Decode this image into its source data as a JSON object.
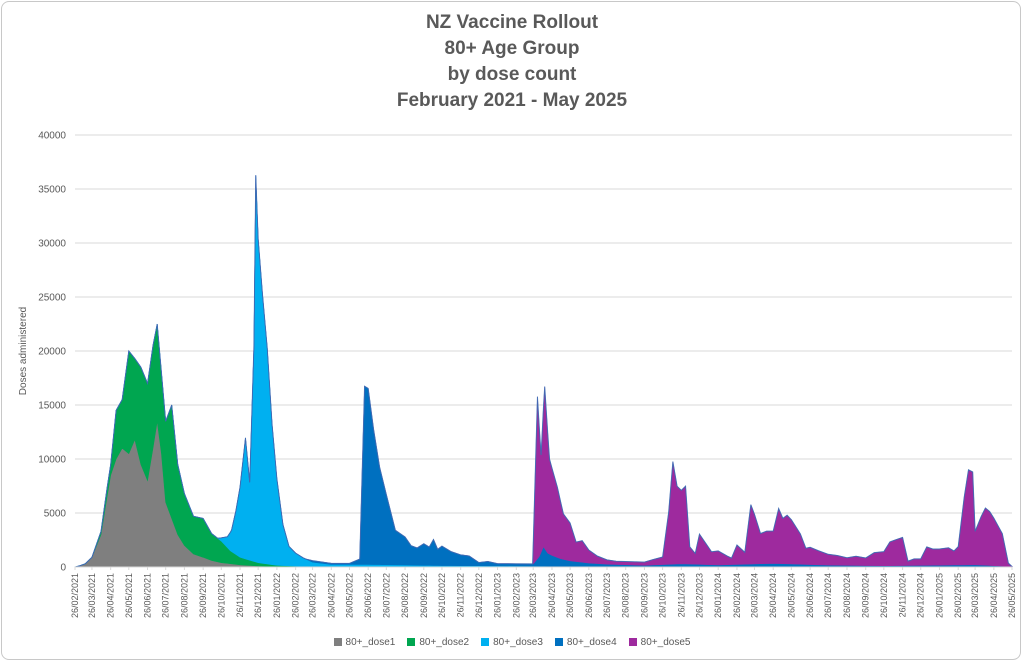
{
  "chart_data": {
    "type": "area",
    "title_lines": [
      "NZ Vaccine Rollout",
      "80+ Age Group",
      "by dose count",
      "February 2021 - May 2025"
    ],
    "xlabel": "",
    "ylabel": "Doses administered",
    "ylim": [
      0,
      40000
    ],
    "y_ticks": [
      0,
      5000,
      10000,
      15000,
      20000,
      25000,
      30000,
      35000,
      40000
    ],
    "x_tick_labels": [
      "26/02/2021",
      "26/03/2021",
      "26/04/2021",
      "26/05/2021",
      "26/06/2021",
      "26/07/2021",
      "26/08/2021",
      "26/09/2021",
      "26/10/2021",
      "26/11/2021",
      "26/12/2021",
      "26/01/2022",
      "26/02/2022",
      "26/03/2022",
      "26/04/2022",
      "26/05/2022",
      "26/06/2022",
      "26/07/2022",
      "26/08/2022",
      "26/09/2022",
      "26/10/2022",
      "26/11/2022",
      "26/12/2022",
      "26/01/2023",
      "26/02/2023",
      "26/03/2023",
      "26/04/2023",
      "26/05/2023",
      "26/06/2023",
      "26/07/2023",
      "26/08/2023",
      "26/09/2023",
      "26/10/2023",
      "26/11/2023",
      "26/12/2023",
      "26/01/2024",
      "26/02/2024",
      "26/03/2024",
      "26/04/2024",
      "26/05/2024",
      "26/06/2024",
      "26/07/2024",
      "26/08/2024",
      "26/09/2024",
      "26/10/2024",
      "26/11/2024",
      "26/12/2024",
      "26/01/2025",
      "26/02/2025",
      "26/03/2025",
      "26/04/2025",
      "26/05/2025"
    ],
    "grid": true,
    "stacked": true,
    "legend_position": "bottom",
    "series": [
      {
        "name": "80+_dose1",
        "color": "#7f7f7f",
        "points": [
          [
            "26/02/2021",
            0
          ],
          [
            "05/03/2021",
            100
          ],
          [
            "15/03/2021",
            300
          ],
          [
            "26/03/2021",
            900
          ],
          [
            "10/04/2021",
            3000
          ],
          [
            "20/04/2021",
            6500
          ],
          [
            "26/04/2021",
            8500
          ],
          [
            "05/05/2021",
            10000
          ],
          [
            "15/05/2021",
            11000
          ],
          [
            "26/05/2021",
            10500
          ],
          [
            "05/06/2021",
            11800
          ],
          [
            "15/06/2021",
            9500
          ],
          [
            "26/06/2021",
            8000
          ],
          [
            "05/07/2021",
            11000
          ],
          [
            "12/07/2021",
            13500
          ],
          [
            "19/07/2021",
            10500
          ],
          [
            "26/07/2021",
            6000
          ],
          [
            "05/08/2021",
            4500
          ],
          [
            "15/08/2021",
            3000
          ],
          [
            "26/08/2021",
            2000
          ],
          [
            "10/09/2021",
            1200
          ],
          [
            "26/09/2021",
            900
          ],
          [
            "10/10/2021",
            600
          ],
          [
            "26/10/2021",
            400
          ],
          [
            "26/11/2021",
            200
          ],
          [
            "26/12/2021",
            100
          ],
          [
            "26/01/2022",
            50
          ],
          [
            "26/03/2022",
            20
          ],
          [
            "26/05/2025",
            0
          ]
        ]
      },
      {
        "name": "80+_dose2",
        "color": "#00a650",
        "points": [
          [
            "26/02/2021",
            0
          ],
          [
            "26/03/2021",
            0
          ],
          [
            "10/04/2021",
            300
          ],
          [
            "20/04/2021",
            800
          ],
          [
            "26/04/2021",
            1000
          ],
          [
            "05/05/2021",
            4500
          ],
          [
            "15/05/2021",
            4500
          ],
          [
            "26/05/2021",
            9500
          ],
          [
            "05/06/2021",
            7500
          ],
          [
            "15/06/2021",
            9000
          ],
          [
            "26/06/2021",
            9000
          ],
          [
            "05/07/2021",
            9500
          ],
          [
            "12/07/2021",
            9000
          ],
          [
            "19/07/2021",
            7500
          ],
          [
            "26/07/2021",
            7500
          ],
          [
            "05/08/2021",
            10500
          ],
          [
            "15/08/2021",
            6500
          ],
          [
            "26/08/2021",
            4800
          ],
          [
            "10/09/2021",
            3500
          ],
          [
            "26/09/2021",
            3600
          ],
          [
            "10/10/2021",
            2500
          ],
          [
            "26/10/2021",
            2000
          ],
          [
            "10/11/2021",
            1200
          ],
          [
            "26/11/2021",
            700
          ],
          [
            "26/12/2021",
            300
          ],
          [
            "26/01/2022",
            100
          ],
          [
            "26/02/2022",
            50
          ],
          [
            "26/03/2022",
            20
          ],
          [
            "26/05/2025",
            0
          ]
        ]
      },
      {
        "name": "80+_dose3",
        "color": "#00b0f0",
        "points": [
          [
            "26/02/2021",
            0
          ],
          [
            "20/10/2021",
            0
          ],
          [
            "26/10/2021",
            300
          ],
          [
            "05/11/2021",
            1000
          ],
          [
            "12/11/2021",
            2000
          ],
          [
            "19/11/2021",
            4000
          ],
          [
            "26/11/2021",
            6500
          ],
          [
            "05/12/2021",
            11200
          ],
          [
            "12/12/2021",
            7200
          ],
          [
            "19/12/2021",
            20000
          ],
          [
            "22/12/2021",
            35800
          ],
          [
            "26/12/2021",
            30000
          ],
          [
            "02/01/2022",
            25000
          ],
          [
            "10/01/2022",
            20000
          ],
          [
            "18/01/2022",
            13000
          ],
          [
            "26/01/2022",
            8000
          ],
          [
            "05/02/2022",
            3800
          ],
          [
            "15/02/2022",
            1800
          ],
          [
            "26/02/2022",
            1200
          ],
          [
            "10/03/2022",
            800
          ],
          [
            "26/03/2022",
            400
          ],
          [
            "26/04/2022",
            200
          ],
          [
            "26/05/2022",
            200
          ],
          [
            "26/06/2022",
            200
          ],
          [
            "26/08/2022",
            150
          ],
          [
            "26/10/2022",
            100
          ],
          [
            "26/01/2023",
            80
          ],
          [
            "26/04/2023",
            50
          ],
          [
            "26/10/2023",
            30
          ],
          [
            "26/05/2025",
            0
          ]
        ]
      },
      {
        "name": "80+_dose4",
        "color": "#0070c0",
        "points": [
          [
            "26/02/2021",
            0
          ],
          [
            "15/03/2022",
            0
          ],
          [
            "26/03/2022",
            150
          ],
          [
            "26/04/2022",
            100
          ],
          [
            "26/05/2022",
            100
          ],
          [
            "12/06/2022",
            500
          ],
          [
            "20/06/2022",
            16500
          ],
          [
            "26/06/2022",
            16300
          ],
          [
            "05/07/2022",
            12500
          ],
          [
            "15/07/2022",
            9000
          ],
          [
            "26/07/2022",
            6500
          ],
          [
            "10/08/2022",
            3200
          ],
          [
            "26/08/2022",
            2600
          ],
          [
            "05/09/2022",
            1800
          ],
          [
            "15/09/2022",
            1600
          ],
          [
            "26/09/2022",
            2000
          ],
          [
            "05/10/2022",
            1700
          ],
          [
            "12/10/2022",
            2400
          ],
          [
            "19/10/2022",
            1500
          ],
          [
            "26/10/2022",
            1800
          ],
          [
            "10/11/2022",
            1300
          ],
          [
            "26/11/2022",
            1000
          ],
          [
            "10/12/2022",
            900
          ],
          [
            "26/12/2022",
            300
          ],
          [
            "10/01/2023",
            400
          ],
          [
            "26/01/2023",
            200
          ],
          [
            "26/02/2023",
            200
          ],
          [
            "26/03/2023",
            200
          ],
          [
            "05/04/2023",
            900
          ],
          [
            "12/04/2023",
            1800
          ],
          [
            "19/04/2023",
            1200
          ],
          [
            "26/04/2023",
            1000
          ],
          [
            "10/05/2023",
            700
          ],
          [
            "26/05/2023",
            500
          ],
          [
            "26/06/2023",
            300
          ],
          [
            "26/07/2023",
            200
          ],
          [
            "26/09/2023",
            100
          ],
          [
            "26/11/2023",
            250
          ],
          [
            "26/01/2024",
            150
          ],
          [
            "26/04/2024",
            300
          ],
          [
            "26/07/2024",
            150
          ],
          [
            "26/10/2024",
            100
          ],
          [
            "26/03/2025",
            200
          ],
          [
            "26/05/2025",
            50
          ]
        ]
      },
      {
        "name": "80+_dose5",
        "color": "#9e2a9e",
        "points": [
          [
            "26/02/2021",
            0
          ],
          [
            "25/03/2023",
            0
          ],
          [
            "02/04/2023",
            15000
          ],
          [
            "08/04/2023",
            9000
          ],
          [
            "14/04/2023",
            15000
          ],
          [
            "22/04/2023",
            8800
          ],
          [
            "05/05/2023",
            6500
          ],
          [
            "15/05/2023",
            4200
          ],
          [
            "26/05/2023",
            3500
          ],
          [
            "05/06/2023",
            1800
          ],
          [
            "15/06/2023",
            2000
          ],
          [
            "26/06/2023",
            1200
          ],
          [
            "10/07/2023",
            700
          ],
          [
            "26/07/2023",
            400
          ],
          [
            "10/08/2023",
            300
          ],
          [
            "26/08/2023",
            300
          ],
          [
            "26/09/2023",
            300
          ],
          [
            "10/10/2023",
            500
          ],
          [
            "26/10/2023",
            700
          ],
          [
            "05/11/2023",
            4800
          ],
          [
            "12/11/2023",
            9500
          ],
          [
            "19/11/2023",
            7200
          ],
          [
            "26/11/2023",
            6800
          ],
          [
            "03/12/2023",
            7200
          ],
          [
            "10/12/2023",
            1600
          ],
          [
            "19/12/2023",
            1000
          ],
          [
            "26/12/2023",
            2800
          ],
          [
            "05/01/2024",
            2000
          ],
          [
            "15/01/2024",
            1200
          ],
          [
            "26/01/2024",
            1300
          ],
          [
            "10/02/2024",
            800
          ],
          [
            "17/02/2024",
            600
          ],
          [
            "26/02/2024",
            1800
          ],
          [
            "10/03/2024",
            1100
          ],
          [
            "20/03/2024",
            5500
          ],
          [
            "26/03/2024",
            4600
          ],
          [
            "05/04/2024",
            2800
          ],
          [
            "15/04/2024",
            3000
          ],
          [
            "26/04/2024",
            3000
          ],
          [
            "05/05/2024",
            5100
          ],
          [
            "12/05/2024",
            4200
          ],
          [
            "19/05/2024",
            4500
          ],
          [
            "26/05/2024",
            4100
          ],
          [
            "10/06/2024",
            2800
          ],
          [
            "19/06/2024",
            1500
          ],
          [
            "26/06/2024",
            1600
          ],
          [
            "10/07/2024",
            1300
          ],
          [
            "26/07/2024",
            1000
          ],
          [
            "10/08/2024",
            900
          ],
          [
            "26/08/2024",
            700
          ],
          [
            "10/09/2024",
            850
          ],
          [
            "26/09/2024",
            700
          ],
          [
            "10/10/2024",
            1200
          ],
          [
            "26/10/2024",
            1300
          ],
          [
            "05/11/2024",
            2200
          ],
          [
            "15/11/2024",
            2400
          ],
          [
            "26/11/2024",
            2600
          ],
          [
            "05/12/2024",
            400
          ],
          [
            "15/12/2024",
            600
          ],
          [
            "26/12/2024",
            600
          ],
          [
            "05/01/2025",
            1700
          ],
          [
            "15/01/2025",
            1500
          ],
          [
            "26/01/2025",
            1500
          ],
          [
            "10/02/2025",
            1600
          ],
          [
            "19/02/2025",
            1300
          ],
          [
            "26/02/2025",
            1700
          ],
          [
            "08/03/2025",
            6300
          ],
          [
            "15/03/2025",
            8800
          ],
          [
            "22/03/2025",
            8600
          ],
          [
            "26/03/2025",
            3100
          ],
          [
            "05/04/2025",
            4500
          ],
          [
            "12/04/2025",
            5300
          ],
          [
            "19/04/2025",
            5000
          ],
          [
            "26/04/2025",
            4400
          ],
          [
            "10/05/2025",
            3000
          ],
          [
            "20/05/2025",
            300
          ],
          [
            "26/05/2025",
            0
          ]
        ]
      }
    ]
  }
}
